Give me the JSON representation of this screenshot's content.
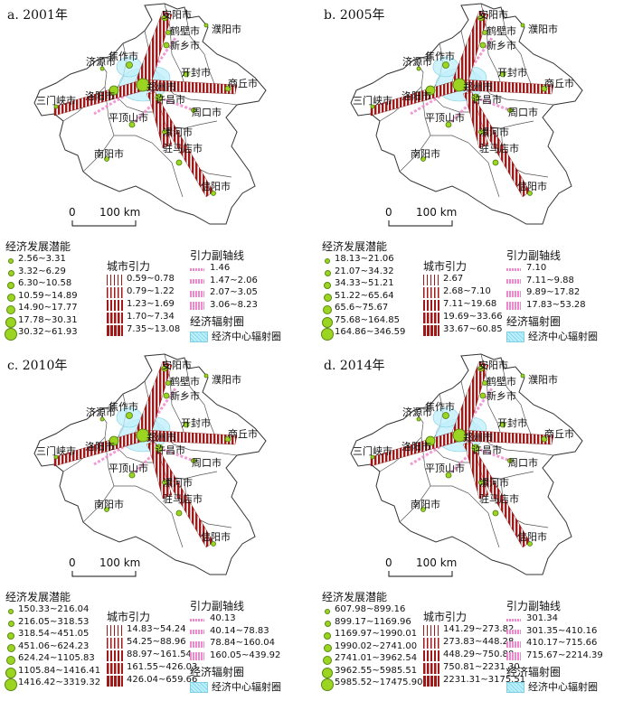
{
  "legend_headers": {
    "potential": "经济发展潜能",
    "gravity": "城市引力",
    "sub_axis": "引力副轴线",
    "radiation": "经济辐射圈",
    "radiation_item": "经济中心辐射圈"
  },
  "scale": {
    "zero": "0",
    "dist": "100 km"
  },
  "cities": {
    "anyang": "安阳市",
    "puyang": "濮阳市",
    "hebi": "鹤壁市",
    "xinxiang": "新乡市",
    "jiaozuo": "焦作市",
    "jiyuan": "济源市",
    "kaifeng": "开封市",
    "shangqiu": "商丘市",
    "sanmenxia": "三门峡市",
    "luoyang": "洛阳市",
    "zhengzhou": "郑州市",
    "xuchang": "许昌市",
    "pingdingshan": "平顶山市",
    "zhoukou": "周口市",
    "luohe": "漯河市",
    "nanyang": "南阳市",
    "zhumadian": "驻马店市",
    "xinyang": "信阳市"
  },
  "panels": [
    {
      "title": "a. 2001年",
      "potential": [
        "2.56~3.31",
        "3.32~6.29",
        "6.30~10.58",
        "10.59~14.89",
        "14.90~17.77",
        "17.78~30.31",
        "30.32~61.93"
      ],
      "gravity": [
        "0.59~0.78",
        "0.79~1.22",
        "1.23~1.69",
        "1.70~7.34",
        "7.35~13.08"
      ],
      "sub_axis": [
        "1.46",
        "1.47~2.06",
        "2.07~3.05",
        "3.06~8.23"
      ]
    },
    {
      "title": "b. 2005年",
      "potential": [
        "18.13~21.06",
        "21.07~34.32",
        "34.33~51.21",
        "51.22~65.64",
        "65.6~75.67",
        "75.68~164.85",
        "164.86~346.59"
      ],
      "gravity": [
        "2.67",
        "2.68~7.10",
        "7.11~19.68",
        "19.69~33.66",
        "33.67~60.85"
      ],
      "sub_axis": [
        "7.10",
        "7.11~9.88",
        "9.89~17.82",
        "17.83~53.28"
      ]
    },
    {
      "title": "c. 2010年",
      "potential": [
        "150.33~216.04",
        "216.05~318.53",
        "318.54~451.05",
        "451.06~624.23",
        "624.24~1105.83",
        "1105.84~1416.41",
        "1416.42~3319.32"
      ],
      "gravity": [
        "14.83~54.24",
        "54.25~88.96",
        "88.97~161.54",
        "161.55~426.03",
        "426.04~659.66"
      ],
      "sub_axis": [
        "40.13",
        "40.14~78.83",
        "78.84~160.04",
        "160.05~439.92"
      ]
    },
    {
      "title": "d. 2014年",
      "potential": [
        "607.98~899.16",
        "899.17~1169.96",
        "1169.97~1990.01",
        "1990.02~2741.00",
        "2741.01~3962.54",
        "3962.55~5985.51",
        "5985.52~17475.90"
      ],
      "gravity": [
        "141.29~273.82",
        "273.83~448.28",
        "448.29~750.80",
        "750.81~2231.30",
        "2231.31~3175.51"
      ],
      "sub_axis": [
        "301.34",
        "301.35~410.16",
        "410.17~715.66",
        "715.67~2214.39"
      ]
    }
  ],
  "colors": {
    "potential": "#9bd421",
    "gravity": "#a01818",
    "sub_axis": "#ee88cc",
    "radiation": "#bfeffb"
  }
}
